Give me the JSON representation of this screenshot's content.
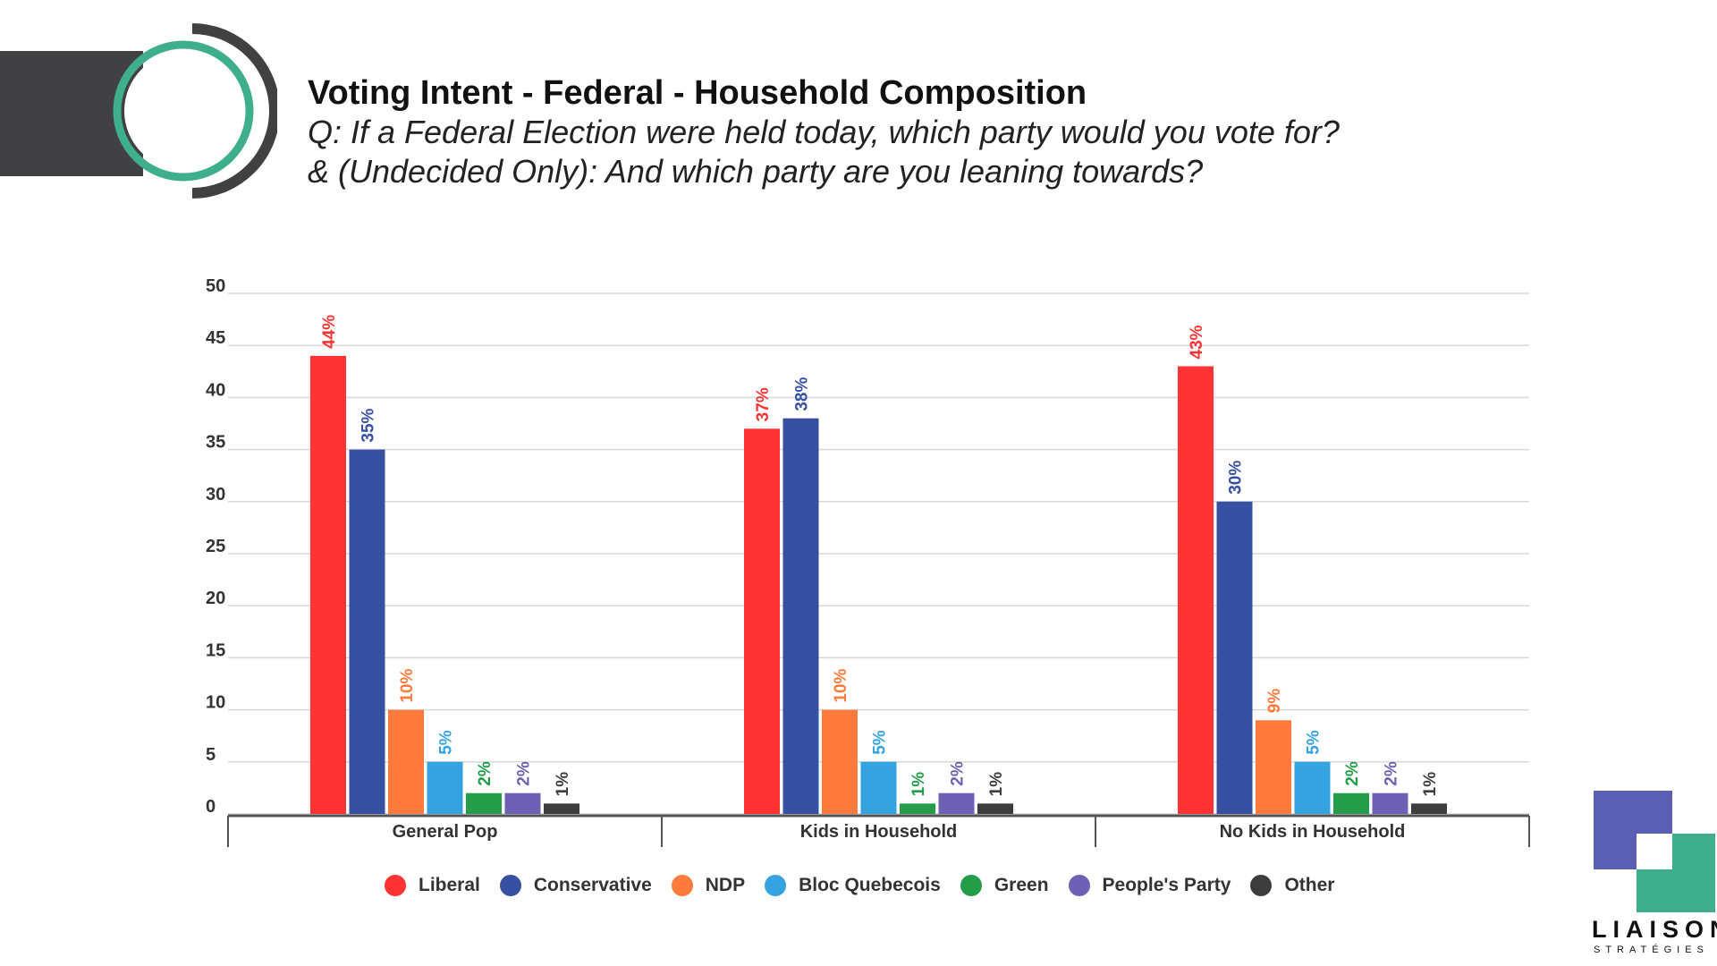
{
  "header": {
    "title": "Voting Intent - Federal - Household Composition",
    "subtitle_line1": "Q: If a Federal Election were held today, which party would you vote for?",
    "subtitle_line2": "& (Undecided Only): And which party are you leaning towards?"
  },
  "colors": {
    "ring_green": "#3fae8c",
    "ring_dark": "#414042",
    "axis_text": "#333333",
    "grid": "#d8d8d8",
    "logo_blue": "#5b5fb4",
    "logo_green": "#3fae8c"
  },
  "chart_data": {
    "type": "bar",
    "title": "Voting Intent - Federal - Household Composition",
    "xlabel": "",
    "ylabel": "",
    "ylim": [
      0,
      50
    ],
    "yticks": [
      0,
      5,
      10,
      15,
      20,
      25,
      30,
      35,
      40,
      45,
      50
    ],
    "grid": true,
    "legend_position": "bottom",
    "categories": [
      "General Pop",
      "Kids in Household",
      "No Kids in Household"
    ],
    "series": [
      {
        "name": "Liberal",
        "color": "#ff3333",
        "values": [
          44,
          37,
          43
        ],
        "labels": [
          "44%",
          "37%",
          "43%"
        ]
      },
      {
        "name": "Conservative",
        "color": "#3850a1",
        "values": [
          35,
          38,
          30
        ],
        "labels": [
          "35%",
          "38%",
          "30%"
        ]
      },
      {
        "name": "NDP",
        "color": "#ff7b3d",
        "values": [
          10,
          10,
          9
        ],
        "labels": [
          "10%",
          "10%",
          "9%"
        ]
      },
      {
        "name": "Bloc Quebecois",
        "color": "#35a3e0",
        "values": [
          5,
          5,
          5
        ],
        "labels": [
          "5%",
          "5%",
          "5%"
        ]
      },
      {
        "name": "Green",
        "color": "#239d4a",
        "values": [
          2,
          1,
          2
        ],
        "labels": [
          "2%",
          "1%",
          "2%"
        ]
      },
      {
        "name": "People's Party",
        "color": "#6e60b4",
        "values": [
          2,
          2,
          2
        ],
        "labels": [
          "2%",
          "2%",
          "2%"
        ]
      },
      {
        "name": "Other",
        "color": "#3d3d3d",
        "values": [
          1,
          1,
          1
        ],
        "labels": [
          "1%",
          "1%",
          "1%"
        ]
      }
    ]
  },
  "logo": {
    "name": "LIAISON",
    "tagline": "STRATÉGIES"
  }
}
